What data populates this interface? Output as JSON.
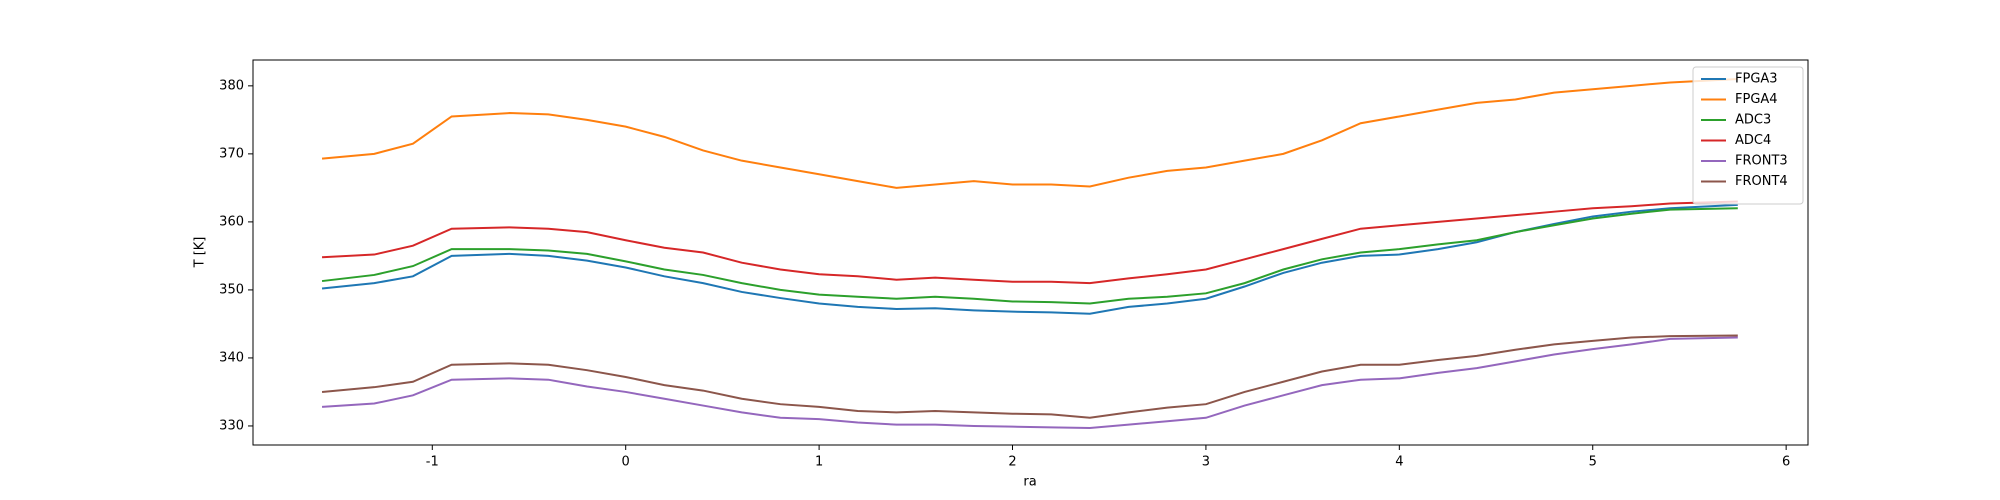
{
  "chart_data": {
    "type": "line",
    "x_label": "ra",
    "y_label": "T [K]",
    "x": [
      -1.57,
      -1.3,
      -1.1,
      -0.9,
      -0.6,
      -0.4,
      -0.2,
      0,
      0.2,
      0.4,
      0.6,
      0.8,
      1.0,
      1.2,
      1.4,
      1.6,
      1.8,
      2.0,
      2.2,
      2.4,
      2.6,
      2.8,
      3.0,
      3.2,
      3.4,
      3.6,
      3.8,
      4.0,
      4.2,
      4.4,
      4.6,
      4.8,
      5.0,
      5.2,
      5.4,
      5.75
    ],
    "series": [
      {
        "name": "FPGA3",
        "color": "#1f77b4",
        "values": [
          350.2,
          351,
          352,
          355,
          355.3,
          355,
          354.3,
          353.3,
          352,
          351,
          349.7,
          348.8,
          348,
          347.5,
          347.2,
          347.3,
          347,
          346.8,
          346.7,
          346.5,
          347.5,
          348,
          348.7,
          350.5,
          352.5,
          354,
          355,
          355.2,
          356,
          357,
          358.5,
          359.7,
          360.8,
          361.5,
          362,
          362.5
        ]
      },
      {
        "name": "FPGA4",
        "color": "#ff7f0e",
        "values": [
          369.3,
          370,
          371.5,
          375.5,
          376,
          375.8,
          375,
          374,
          372.5,
          370.5,
          369,
          368,
          367,
          366,
          365,
          365.5,
          366,
          365.5,
          365.5,
          365.2,
          366.5,
          367.5,
          368,
          369,
          370,
          372,
          374.5,
          375.5,
          376.5,
          377.5,
          378,
          379,
          379.5,
          380,
          380.5,
          381
        ]
      },
      {
        "name": "ADC3",
        "color": "#2ca02c",
        "values": [
          351.3,
          352.2,
          353.5,
          356,
          356,
          355.8,
          355.3,
          354.2,
          353,
          352.2,
          351,
          350,
          349.3,
          349,
          348.7,
          349,
          348.7,
          348.3,
          348.2,
          348,
          348.7,
          349,
          349.5,
          351,
          353,
          354.5,
          355.5,
          356,
          356.7,
          357.3,
          358.5,
          359.5,
          360.5,
          361.2,
          361.8,
          362
        ]
      },
      {
        "name": "ADC4",
        "color": "#d62728",
        "values": [
          354.8,
          355.2,
          356.5,
          359,
          359.2,
          359,
          358.5,
          357.3,
          356.2,
          355.5,
          354,
          353,
          352.3,
          352,
          351.5,
          351.8,
          351.5,
          351.2,
          351.2,
          351,
          351.7,
          352.3,
          353,
          354.5,
          356,
          357.5,
          359,
          359.5,
          360,
          360.5,
          361,
          361.5,
          362,
          362.3,
          362.7,
          363
        ]
      },
      {
        "name": "FRONT3",
        "color": "#9467bd",
        "values": [
          332.8,
          333.3,
          334.5,
          336.8,
          337,
          336.8,
          335.8,
          335,
          334,
          333,
          332,
          331.2,
          331,
          330.5,
          330.2,
          330.2,
          330,
          329.9,
          329.8,
          329.7,
          330.2,
          330.7,
          331.2,
          333,
          334.5,
          336,
          336.8,
          337,
          337.8,
          338.5,
          339.5,
          340.5,
          341.3,
          342,
          342.8,
          343
        ]
      },
      {
        "name": "FRONT4",
        "color": "#8c564b",
        "values": [
          335,
          335.7,
          336.5,
          339,
          339.2,
          339,
          338.2,
          337.2,
          336,
          335.2,
          334,
          333.2,
          332.8,
          332.2,
          332,
          332.2,
          332,
          331.8,
          331.7,
          331.2,
          332,
          332.7,
          333.2,
          335,
          336.5,
          338,
          339,
          339,
          339.7,
          340.3,
          341.2,
          342,
          342.5,
          343,
          343.2,
          343.3
        ]
      }
    ],
    "xlim": [
      -1.927,
      6.113
    ],
    "ylim": [
      327.2,
      383.8
    ],
    "xticks": [
      -1,
      0,
      1,
      2,
      3,
      4,
      5,
      6
    ],
    "yticks": [
      330,
      340,
      350,
      360,
      370,
      380
    ],
    "legend": "upper right"
  }
}
